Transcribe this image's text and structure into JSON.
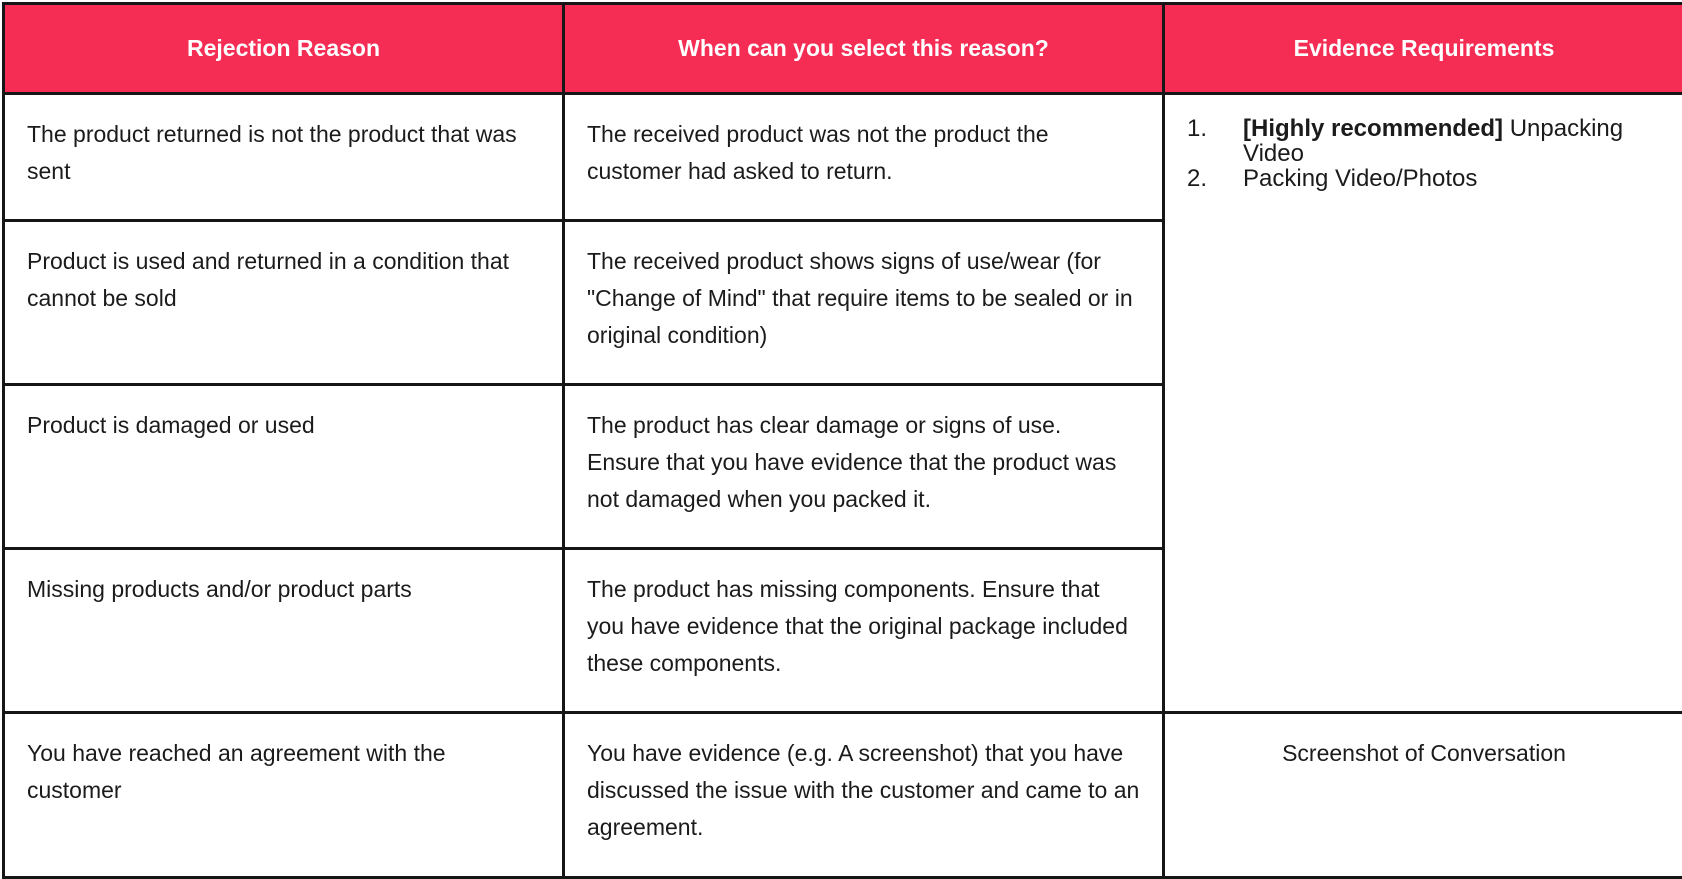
{
  "table": {
    "headers": [
      "Rejection Reason",
      "When can you select this reason?",
      "Evidence Requirements"
    ],
    "rows": [
      {
        "reason": "The product returned is not the product that was sent",
        "when": "The received product was not the product the customer had asked to return."
      },
      {
        "reason": "Product is used and returned in a condition that cannot be sold",
        "when": "The received product shows signs of use/wear (for \"Change of Mind\" that require items to be sealed or in original condition)"
      },
      {
        "reason": "Product is damaged or used",
        "when": "The product has clear damage or signs of use. Ensure that you have evidence that the product was not damaged when you packed it."
      },
      {
        "reason": "Missing products and/or product parts",
        "when": "The product has missing components. Ensure that you have evidence that the original package included these components."
      },
      {
        "reason": "You have reached an agreement with the customer",
        "when": "You have evidence (e.g. A screenshot) that you have discussed the issue with the customer and came to an agreement."
      }
    ],
    "evidence_group_1": [
      {
        "number": "1.",
        "highlight": "[Highly recommended]",
        "text": " Unpacking Video"
      },
      {
        "number": "2.",
        "highlight": "",
        "text": "Packing Video/Photos"
      }
    ],
    "evidence_group_2": "Screenshot of Conversation"
  },
  "colors": {
    "header_bg": "#f52d55",
    "header_text": "#ffffff",
    "border": "#161616"
  }
}
